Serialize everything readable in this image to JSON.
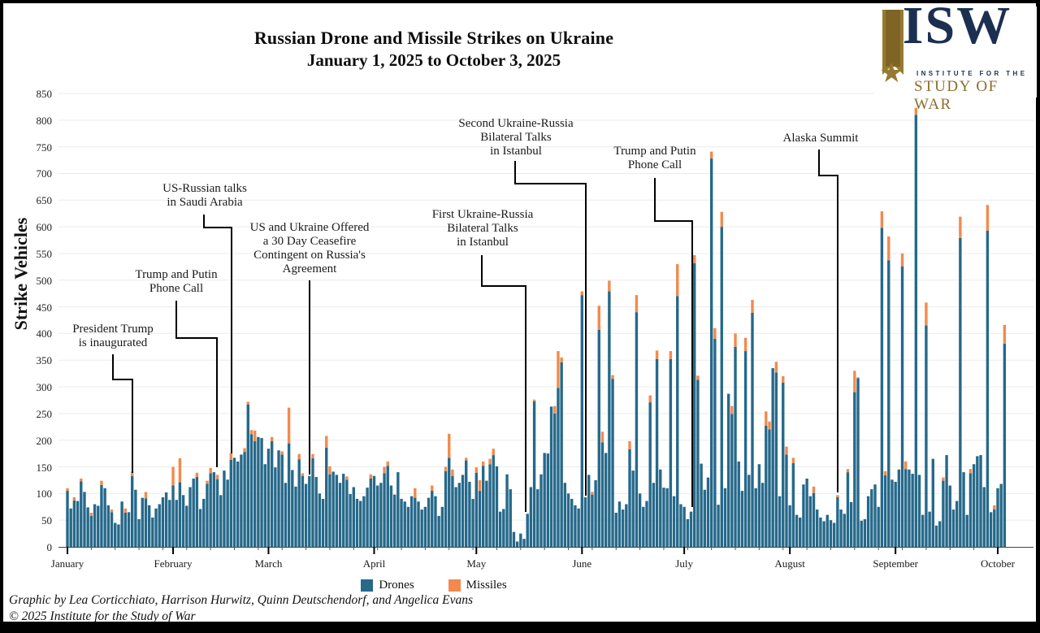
{
  "logo": {
    "wordmark": "ISW",
    "line1": "INSTITUTE FOR THE",
    "line2": "STUDY OF WAR",
    "star": "★",
    "navy": "#1b3050",
    "gold": "#977a31"
  },
  "footer": {
    "credit": "Graphic by Lea Corticchiato, Harrison Hurwitz, Quinn Deutschendorf, and Angelica Evans",
    "copyright": "© 2025 Institute for the Study of War"
  },
  "chart_data": {
    "type": "bar",
    "stacked": true,
    "title": "Russian Drone and Missile Strikes on Ukraine",
    "subtitle": "January 1, 2025 to October 3, 2025",
    "xlabel": "",
    "ylabel": "Strike Vehicles",
    "ylim": [
      0,
      850
    ],
    "y_ticks": [
      0,
      50,
      100,
      150,
      200,
      250,
      300,
      350,
      400,
      450,
      500,
      550,
      600,
      650,
      700,
      750,
      800,
      850
    ],
    "grid": true,
    "legend_position": "bottom",
    "start_date": "2025-01-01",
    "end_date": "2025-10-03",
    "months": [
      "January",
      "February",
      "March",
      "April",
      "May",
      "June",
      "July",
      "August",
      "September",
      "October"
    ],
    "month_start_day_index": [
      0,
      31,
      59,
      90,
      120,
      151,
      181,
      212,
      243,
      273
    ],
    "colors": {
      "drones": "#26698a",
      "missiles": "#f28a4d",
      "annotation_line": "#000000",
      "gridline": "#ececec"
    },
    "legend": [
      {
        "label": "Drones",
        "color": "#26698a"
      },
      {
        "label": "Missiles",
        "color": "#f28a4d"
      }
    ],
    "series": [
      {
        "name": "Drones",
        "values": [
          105,
          72,
          87,
          86,
          123,
          103,
          74,
          58,
          80,
          77,
          116,
          110,
          78,
          65,
          45,
          42,
          85,
          64,
          65,
          133,
          107,
          52,
          92,
          91,
          78,
          55,
          72,
          80,
          93,
          102,
          88,
          115,
          88,
          121,
          97,
          77,
          112,
          128,
          131,
          71,
          90,
          118,
          138,
          140,
          127,
          97,
          143,
          126,
          163,
          167,
          160,
          173,
          178,
          267,
          211,
          198,
          206,
          204,
          155,
          184,
          198,
          149,
          181,
          173,
          120,
          194,
          144,
          113,
          164,
          133,
          118,
          133,
          166,
          131,
          100,
          90,
          186,
          136,
          141,
          135,
          120,
          137,
          126,
          99,
          112,
          90,
          86,
          95,
          111,
          128,
          133,
          115,
          120,
          138,
          152,
          115,
          98,
          140,
          90,
          85,
          75,
          95,
          92,
          85,
          70,
          75,
          92,
          105,
          95,
          58,
          75,
          142,
          167,
          133,
          112,
          120,
          135,
          162,
          122,
          90,
          139,
          105,
          152,
          124,
          155,
          172,
          151,
          66,
          71,
          136,
          108,
          28,
          10,
          25,
          15,
          62,
          112,
          273,
          108,
          136,
          176,
          175,
          263,
          250,
          298,
          346,
          120,
          100,
          90,
          78,
          72,
          472,
          93,
          135,
          98,
          125,
          407,
          196,
          176,
          479,
          315,
          64,
          85,
          70,
          80,
          183,
          143,
          440,
          100,
          75,
          86,
          271,
          120,
          352,
          145,
          111,
          110,
          352,
          95,
          470,
          80,
          75,
          52,
          66,
          532,
          313,
          156,
          107,
          130,
          728,
          390,
          79,
          600,
          110,
          287,
          249,
          375,
          160,
          105,
          367,
          135,
          439,
          110,
          155,
          120,
          227,
          220,
          335,
          327,
          95,
          308,
          173,
          78,
          157,
          60,
          55,
          117,
          128,
          95,
          101,
          70,
          55,
          48,
          60,
          50,
          45,
          93,
          70,
          62,
          140,
          84,
          290,
          316,
          49,
          52,
          95,
          108,
          117,
          75,
          598,
          134,
          537,
          126,
          122,
          145,
          526,
          146,
          145,
          137,
          810,
          135,
          60,
          415,
          66,
          165,
          40,
          48,
          124,
          172,
          115,
          70,
          86,
          579,
          140,
          60,
          138,
          155,
          170,
          172,
          112,
          593,
          65,
          70,
          110,
          118,
          381
        ]
      },
      {
        "name": "Missiles",
        "values": [
          5,
          0,
          6,
          0,
          5,
          0,
          0,
          6,
          0,
          0,
          8,
          0,
          0,
          5,
          0,
          0,
          0,
          8,
          0,
          8,
          0,
          0,
          0,
          12,
          0,
          0,
          0,
          0,
          0,
          0,
          0,
          35,
          0,
          45,
          0,
          0,
          0,
          0,
          8,
          0,
          0,
          6,
          10,
          0,
          8,
          0,
          0,
          0,
          13,
          0,
          0,
          0,
          7,
          5,
          8,
          20,
          0,
          0,
          0,
          0,
          8,
          0,
          0,
          6,
          0,
          67,
          0,
          0,
          10,
          5,
          0,
          0,
          8,
          0,
          0,
          0,
          22,
          15,
          0,
          0,
          0,
          0,
          6,
          0,
          0,
          0,
          0,
          0,
          0,
          8,
          0,
          0,
          0,
          12,
          8,
          0,
          0,
          0,
          0,
          0,
          0,
          0,
          18,
          0,
          0,
          0,
          0,
          10,
          0,
          0,
          0,
          8,
          45,
          12,
          0,
          0,
          0,
          5,
          0,
          0,
          10,
          20,
          8,
          0,
          10,
          12,
          0,
          0,
          0,
          0,
          0,
          0,
          0,
          0,
          0,
          0,
          0,
          3,
          0,
          0,
          0,
          0,
          0,
          14,
          69,
          9,
          0,
          0,
          0,
          0,
          0,
          7,
          0,
          0,
          5,
          0,
          45,
          20,
          0,
          20,
          7,
          0,
          0,
          0,
          0,
          15,
          0,
          32,
          0,
          0,
          0,
          13,
          0,
          16,
          0,
          0,
          0,
          15,
          0,
          60,
          0,
          0,
          0,
          0,
          15,
          8,
          0,
          0,
          0,
          13,
          20,
          0,
          28,
          0,
          0,
          15,
          25,
          0,
          0,
          25,
          0,
          24,
          0,
          0,
          0,
          27,
          15,
          0,
          20,
          0,
          12,
          15,
          0,
          10,
          0,
          0,
          0,
          0,
          0,
          12,
          0,
          0,
          0,
          0,
          0,
          0,
          4,
          0,
          0,
          6,
          0,
          40,
          2,
          0,
          0,
          0,
          0,
          0,
          0,
          31,
          8,
          45,
          0,
          0,
          0,
          24,
          14,
          0,
          0,
          13,
          0,
          0,
          43,
          0,
          0,
          0,
          0,
          6,
          0,
          0,
          0,
          0,
          40,
          0,
          0,
          8,
          0,
          0,
          0,
          0,
          48,
          0,
          8,
          0,
          0,
          35
        ]
      }
    ],
    "annotations": [
      {
        "id": "inauguration",
        "label": "President Trump\nis inaugurated",
        "date": "2025-01-20",
        "day_index": 19,
        "text_cx": 135,
        "text_top": 393,
        "line": [
          [
            135,
            432
          ],
          [
            135,
            463
          ],
          [
            159,
            463
          ],
          [
            159,
            578
          ]
        ]
      },
      {
        "id": "putin-call-feb",
        "label": "Trump and Putin\nPhone Call",
        "date": "2025-02-12",
        "day_index": 42,
        "text_cx": 213,
        "text_top": 326,
        "line": [
          [
            213,
            366
          ],
          [
            213,
            412
          ],
          [
            263,
            412
          ],
          [
            263,
            571
          ]
        ]
      },
      {
        "id": "saudi-talks",
        "label": "US-Russian talks\nin Saudi Arabia",
        "date": "2025-02-18",
        "day_index": 48,
        "text_cx": 248,
        "text_top": 220,
        "line": [
          [
            247,
            260
          ],
          [
            247,
            276
          ],
          [
            281,
            276
          ],
          [
            281,
            554
          ]
        ]
      },
      {
        "id": "ceasefire-offer",
        "label": "US and Ukraine Offered\na 30 Day Ceasefire\nContingent on Russia's\nAgreement",
        "date": "2025-03-11",
        "day_index": 71,
        "text_cx": 377,
        "text_top": 268,
        "line": [
          [
            377,
            341
          ],
          [
            377,
            580
          ]
        ]
      },
      {
        "id": "istanbul-1",
        "label": "First Ukraine-Russia\nBilateral Talks\nin Istanbul",
        "date": "2025-05-16",
        "day_index": 135,
        "text_cx": 590,
        "text_top": 252,
        "line": [
          [
            589,
            310
          ],
          [
            589,
            348
          ],
          [
            643,
            348
          ],
          [
            643,
            626
          ]
        ]
      },
      {
        "id": "istanbul-2",
        "label": "Second Ukraine-Russia\nBilateral Talks\nin Istanbul",
        "date": "2025-06-02",
        "day_index": 152,
        "text_cx": 631,
        "text_top": 140,
        "line": [
          [
            630,
            194
          ],
          [
            630,
            222
          ],
          [
            717,
            222
          ],
          [
            717,
            606
          ]
        ]
      },
      {
        "id": "putin-call-jul",
        "label": "Trump and Putin\nPhone Call",
        "date": "2025-07-03",
        "day_index": 183,
        "text_cx": 802,
        "text_top": 174,
        "line": [
          [
            802,
            215
          ],
          [
            802,
            268
          ],
          [
            848,
            268
          ],
          [
            848,
            620
          ]
        ]
      },
      {
        "id": "alaska-summit",
        "label": "Alaska Summit",
        "date": "2025-08-15",
        "day_index": 226,
        "text_cx": 1006,
        "text_top": 158,
        "line": [
          [
            1004,
            180
          ],
          [
            1004,
            212
          ],
          [
            1027,
            212
          ],
          [
            1027,
            602
          ]
        ]
      }
    ]
  }
}
